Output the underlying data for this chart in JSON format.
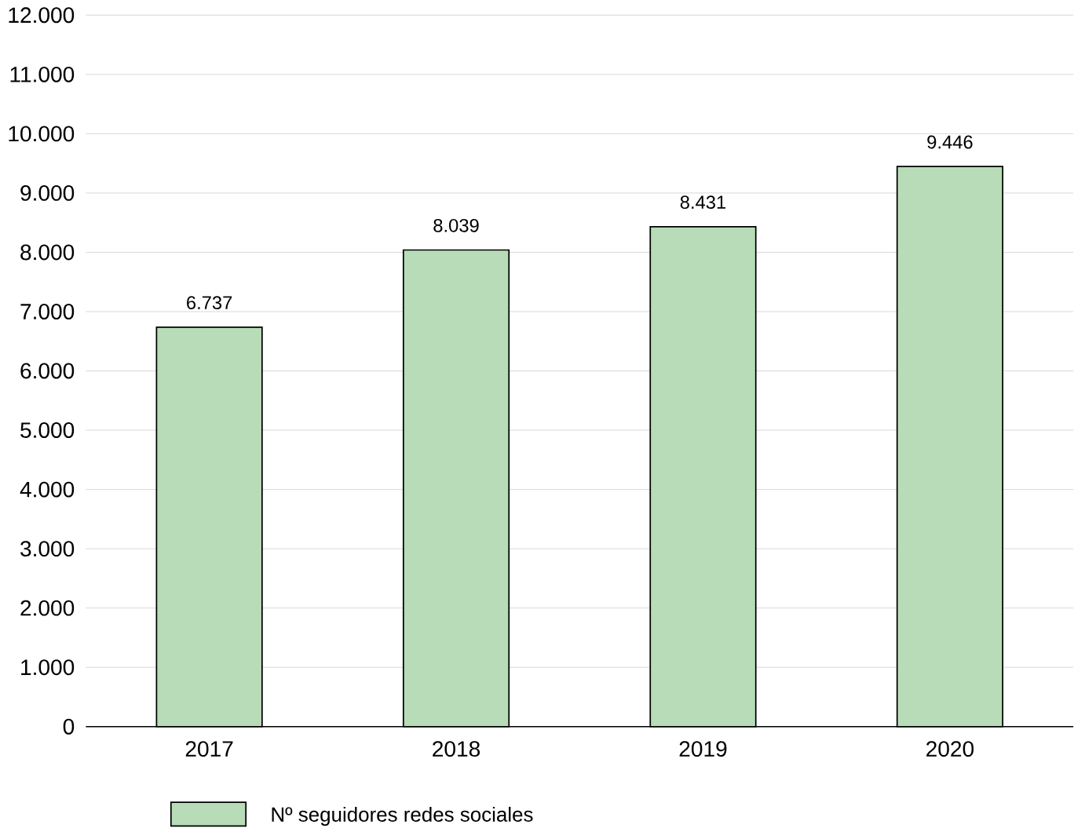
{
  "chart_data": {
    "type": "bar",
    "categories": [
      "2017",
      "2018",
      "2019",
      "2020"
    ],
    "series": [
      {
        "name": "Nº seguidores redes sociales",
        "color": "#b7dcb7",
        "values": [
          6737,
          8039,
          8431,
          9446
        ],
        "value_labels": [
          "6.737",
          "8.039",
          "8.431",
          "9.446"
        ]
      }
    ],
    "ylim": [
      0,
      12000
    ],
    "yticks": [
      {
        "value": 0,
        "label": "0"
      },
      {
        "value": 1000,
        "label": "1.000"
      },
      {
        "value": 2000,
        "label": "2.000"
      },
      {
        "value": 3000,
        "label": "3.000"
      },
      {
        "value": 4000,
        "label": "4.000"
      },
      {
        "value": 5000,
        "label": "5.000"
      },
      {
        "value": 6000,
        "label": "6.000"
      },
      {
        "value": 7000,
        "label": "7.000"
      },
      {
        "value": 8000,
        "label": "8.000"
      },
      {
        "value": 9000,
        "label": "9.000"
      },
      {
        "value": 10000,
        "label": "10.000"
      },
      {
        "value": 11000,
        "label": "11.000"
      },
      {
        "value": 12000,
        "label": "12.000"
      }
    ],
    "grid": "y",
    "legend": "bottom"
  }
}
